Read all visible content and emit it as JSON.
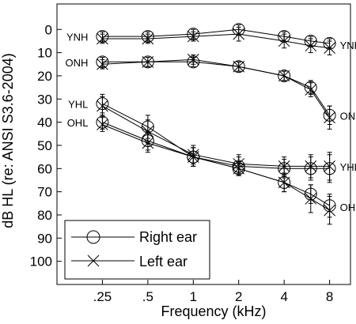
{
  "chart_data": {
    "type": "line",
    "xlabel": "Frequency (kHz)",
    "ylabel": "dB HL (re: ANSI S3.6-2004)",
    "x_scale": "log",
    "x_ticks": [
      0.25,
      0.5,
      1,
      2,
      4,
      8
    ],
    "x_tick_labels": [
      ".25",
      ".5",
      "1",
      "2",
      "4",
      "8"
    ],
    "xlim": [
      0.125,
      11
    ],
    "y_ticks": [
      0,
      10,
      20,
      30,
      40,
      50,
      60,
      70,
      80,
      90,
      100
    ],
    "y_tick_labels": [
      "0",
      "10",
      "20",
      "30",
      "40",
      "50",
      "60",
      "70",
      "80",
      "90",
      "100"
    ],
    "ylim": [
      -11,
      110
    ],
    "y_inverted": true,
    "grid": false,
    "x": [
      0.25,
      0.5,
      1,
      2,
      4,
      6,
      8
    ],
    "legend": {
      "position": "bottom-left",
      "entries": [
        {
          "label": "Right ear",
          "marker": "circle"
        },
        {
          "label": "Left ear",
          "marker": "x"
        }
      ]
    },
    "groups": [
      {
        "label_left": "YNH",
        "label_right": "YNH",
        "series": [
          {
            "ear": "right",
            "marker": "circle",
            "values": [
              3,
              3,
              2,
              0,
              3,
              5,
              6
            ],
            "err": [
              2,
              2,
              2,
              2,
              2,
              2,
              2
            ]
          },
          {
            "ear": "left",
            "marker": "x",
            "values": [
              4,
              4,
              3,
              2,
              5,
              7,
              8
            ],
            "err": [
              2,
              2,
              2,
              3,
              3,
              3,
              3
            ]
          }
        ]
      },
      {
        "label_left": "ONH",
        "label_right": "ONH",
        "series": [
          {
            "ear": "right",
            "marker": "circle",
            "values": [
              14,
              14,
              14,
              16,
              20,
              25,
              37
            ],
            "err": [
              2,
              2,
              2,
              2,
              2,
              3,
              4
            ]
          },
          {
            "ear": "left",
            "marker": "x",
            "values": [
              15,
              14,
              13,
              16,
              20,
              26,
              38
            ],
            "err": [
              2,
              2,
              2,
              2,
              2,
              3,
              5
            ]
          }
        ]
      },
      {
        "label_left": "YHL",
        "label_right": "YHL",
        "series": [
          {
            "ear": "right",
            "marker": "circle",
            "values": [
              32,
              42,
              55,
              59,
              60,
              60,
              60
            ],
            "err": [
              4,
              5,
              4,
              4,
              4,
              5,
              6
            ]
          },
          {
            "ear": "left",
            "marker": "x",
            "values": [
              33,
              44,
              54,
              58,
              59,
              59,
              59
            ],
            "err": [
              4,
              5,
              4,
              4,
              4,
              5,
              6
            ]
          }
        ]
      },
      {
        "label_left": "OHL",
        "label_right": "OHL",
        "series": [
          {
            "ear": "right",
            "marker": "circle",
            "values": [
              40,
              48,
              55,
              60,
              66,
              71,
              76
            ],
            "err": [
              3,
              4,
              4,
              3,
              4,
              4,
              5
            ]
          },
          {
            "ear": "left",
            "marker": "x",
            "values": [
              41,
              49,
              55,
              60,
              66,
              73,
              78
            ],
            "err": [
              3,
              4,
              4,
              3,
              4,
              6,
              6
            ]
          }
        ]
      }
    ]
  }
}
